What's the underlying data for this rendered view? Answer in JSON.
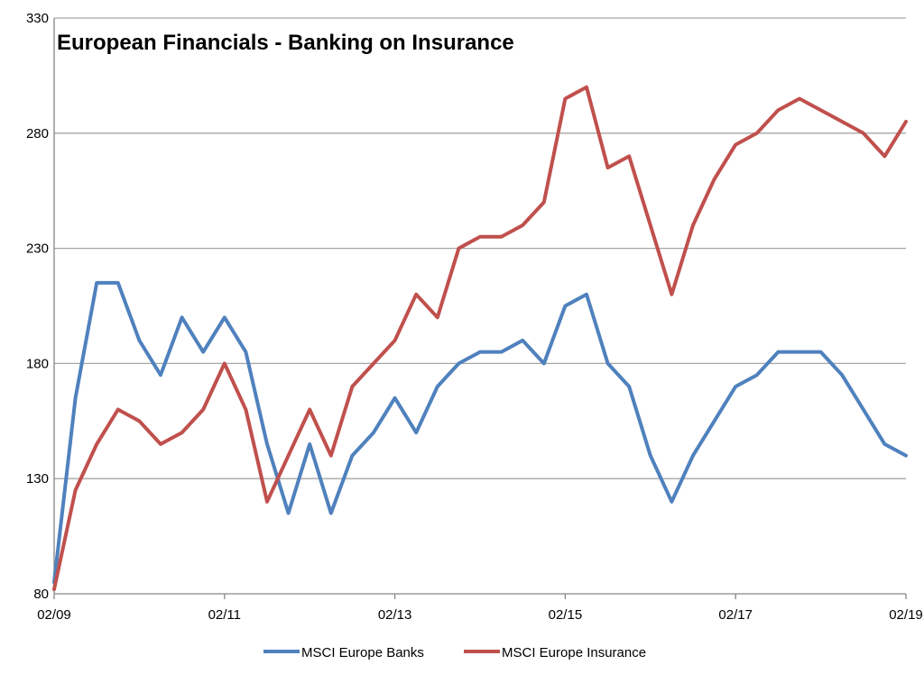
{
  "chart_data": {
    "type": "line",
    "title": "European Financials - Banking on Insurance",
    "xlabel": "",
    "ylabel": "",
    "ylim": [
      80,
      330
    ],
    "yticks": [
      80,
      130,
      180,
      230,
      280,
      330
    ],
    "xticks": [
      "02/09",
      "02/11",
      "02/13",
      "02/15",
      "02/17",
      "02/19"
    ],
    "grid": true,
    "legend_position": "bottom",
    "colors": {
      "MSCI Europe Banks": "#4F81BD",
      "MSCI Europe Insurance": "#C0504D",
      "grid": "#a6a6a6",
      "axis": "#868686"
    },
    "x": [
      "02/09",
      "05/09",
      "08/09",
      "11/09",
      "02/10",
      "05/10",
      "08/10",
      "11/10",
      "02/11",
      "05/11",
      "08/11",
      "11/11",
      "02/12",
      "05/12",
      "08/12",
      "11/12",
      "02/13",
      "05/13",
      "08/13",
      "11/13",
      "02/14",
      "05/14",
      "08/14",
      "11/14",
      "02/15",
      "05/15",
      "08/15",
      "11/15",
      "02/16",
      "05/16",
      "08/16",
      "11/16",
      "02/17",
      "05/17",
      "08/17",
      "11/17",
      "02/18",
      "05/18",
      "08/18",
      "11/18",
      "02/19"
    ],
    "series": [
      {
        "name": "MSCI Europe Banks",
        "values": [
          85,
          165,
          215,
          215,
          190,
          175,
          200,
          185,
          200,
          185,
          145,
          115,
          145,
          115,
          140,
          150,
          165,
          150,
          170,
          180,
          185,
          185,
          190,
          180,
          205,
          210,
          180,
          170,
          140,
          120,
          140,
          155,
          170,
          175,
          185,
          185,
          185,
          175,
          160,
          145,
          140
        ]
      },
      {
        "name": "MSCI Europe Insurance",
        "values": [
          82,
          125,
          145,
          160,
          155,
          145,
          150,
          160,
          180,
          160,
          120,
          140,
          160,
          140,
          170,
          180,
          190,
          210,
          200,
          230,
          235,
          235,
          240,
          250,
          295,
          300,
          265,
          270,
          240,
          210,
          240,
          260,
          275,
          280,
          290,
          295,
          290,
          285,
          280,
          270,
          285
        ]
      }
    ]
  }
}
